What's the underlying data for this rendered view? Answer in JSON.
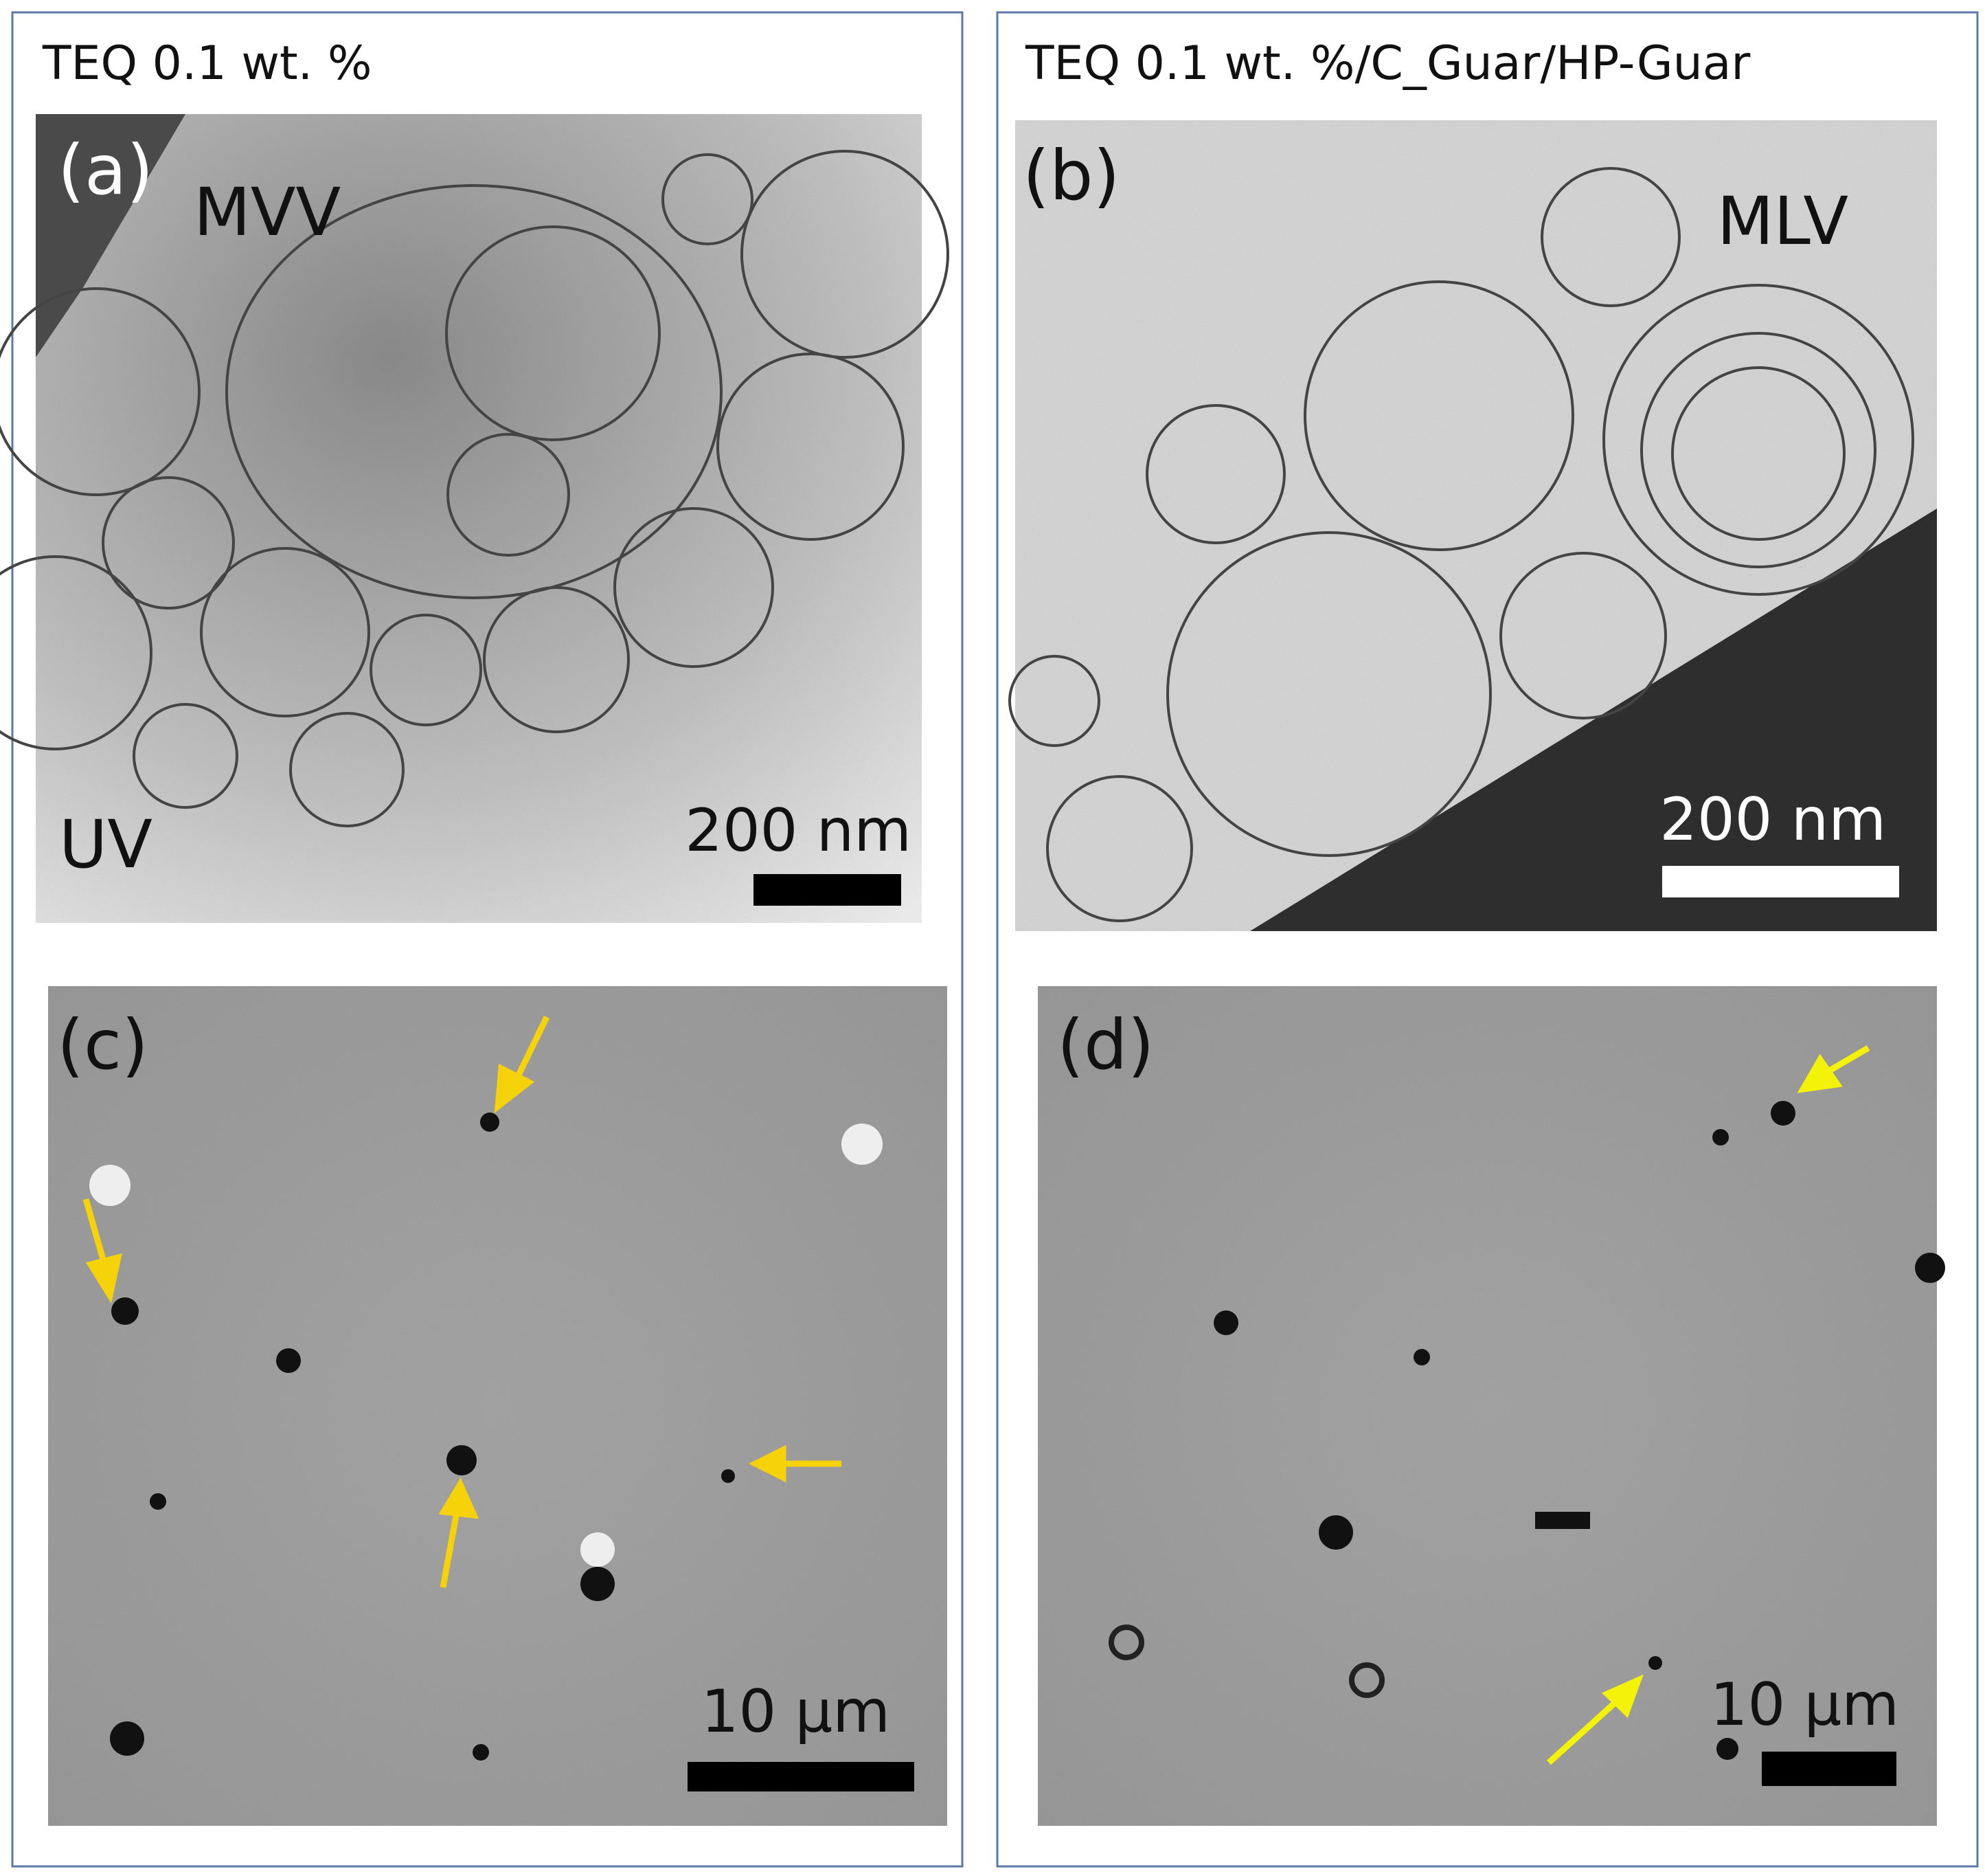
{
  "columns": [
    {
      "title": "TEQ 0.1 wt. %",
      "panels": [
        {
          "label": "(a)",
          "annotations": [
            "MVV",
            "UV"
          ],
          "scale_bar": "200 nm"
        },
        {
          "label": "(c)",
          "scale_bar": "10 μm"
        }
      ]
    },
    {
      "title": "TEQ 0.1 wt. %/C_Guar/HP-Guar",
      "panels": [
        {
          "label": "(b)",
          "annotations": [
            "MLV"
          ],
          "scale_bar": "200 nm"
        },
        {
          "label": "(d)",
          "scale_bar": "10 μm"
        }
      ]
    }
  ]
}
